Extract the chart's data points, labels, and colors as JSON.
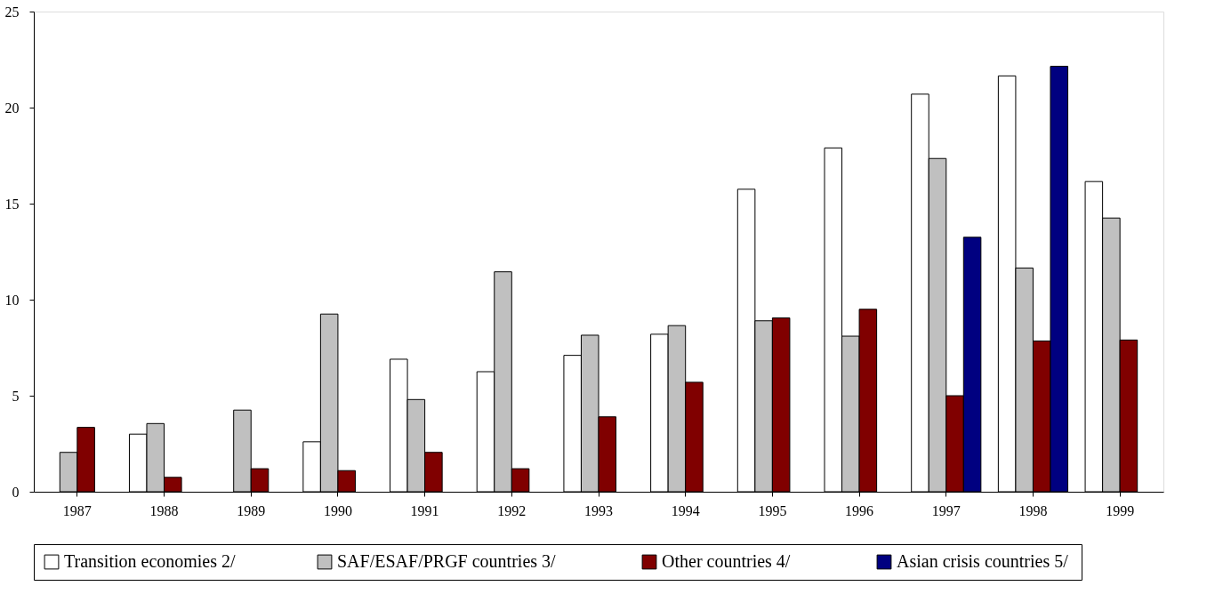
{
  "chart_data": {
    "type": "bar",
    "categories": [
      "1987",
      "1988",
      "1989",
      "1990",
      "1991",
      "1992",
      "1993",
      "1994",
      "1995",
      "1996",
      "1997",
      "1998",
      "1999"
    ],
    "series": [
      {
        "name": "Transition economies 2/",
        "color": "#ffffff",
        "values": [
          null,
          3.0,
          null,
          2.6,
          6.9,
          6.25,
          7.1,
          8.2,
          15.75,
          17.9,
          20.7,
          21.65,
          16.15
        ]
      },
      {
        "name": "SAF/ESAF/PRGF countries  3/",
        "color": "#c0c0c0",
        "values": [
          2.05,
          3.55,
          4.25,
          9.25,
          4.8,
          11.45,
          8.15,
          8.65,
          8.9,
          8.1,
          17.35,
          11.65,
          14.25
        ]
      },
      {
        "name": "Other countries  4/",
        "color": "#800000",
        "values": [
          3.35,
          0.75,
          1.2,
          1.1,
          2.05,
          1.2,
          3.9,
          5.7,
          9.05,
          9.5,
          5.0,
          7.85,
          7.9
        ]
      },
      {
        "name": "Asian crisis countries  5/",
        "color": "#000080",
        "values": [
          null,
          null,
          null,
          null,
          null,
          null,
          null,
          null,
          null,
          null,
          13.25,
          22.15,
          null
        ]
      }
    ],
    "ylim": [
      0,
      25
    ],
    "yticks": [
      0,
      5,
      10,
      15,
      20,
      25
    ],
    "grid": false,
    "legend": "bottom"
  }
}
